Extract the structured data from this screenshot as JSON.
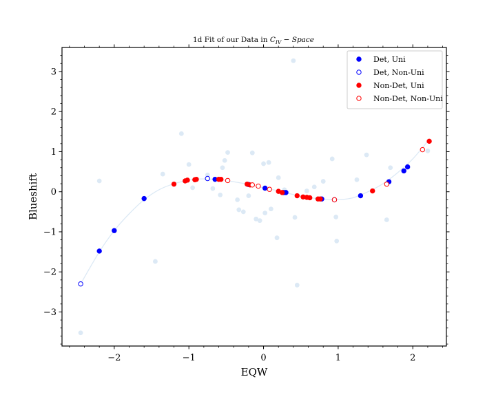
{
  "chart_data": {
    "type": "scatter",
    "title": "1d Fit of our Data in C_IV − Space",
    "title_parts": {
      "prefix": "1d Fit of our Data in ",
      "symbol": "C",
      "subscript": "IV",
      "suffix": " − Space"
    },
    "xlabel": "EQW",
    "ylabel": "Blueshift",
    "xlim": [
      -2.7,
      2.45
    ],
    "ylim": [
      -3.85,
      3.6
    ],
    "xticks": [
      -2,
      -1,
      0,
      1,
      2
    ],
    "xtick_labels": [
      "−2",
      "−1",
      "0",
      "1",
      "2"
    ],
    "yticks": [
      -3,
      -2,
      -1,
      0,
      1,
      2,
      3
    ],
    "ytick_labels": [
      "−3",
      "−2",
      "−1",
      "0",
      "1",
      "2",
      "3"
    ],
    "grid": false,
    "legend_position": "top-right",
    "colors": {
      "blue": "#0000ff",
      "red": "#ff0000",
      "background_points": "#dce9f5",
      "fit_line": "#dce9f5",
      "axes": "#000000"
    },
    "fit_curve": {
      "x": [
        -2.45,
        -2.2,
        -2.0,
        -1.8,
        -1.6,
        -1.4,
        -1.2,
        -1.0,
        -0.8,
        -0.6,
        -0.4,
        -0.2,
        0.0,
        0.2,
        0.4,
        0.6,
        0.8,
        1.0,
        1.2,
        1.4,
        1.6,
        1.8,
        2.0,
        2.2
      ],
      "y": [
        -2.3,
        -1.5,
        -0.97,
        -0.55,
        -0.2,
        0.05,
        0.2,
        0.29,
        0.32,
        0.3,
        0.25,
        0.18,
        0.1,
        0.02,
        -0.07,
        -0.14,
        -0.19,
        -0.2,
        -0.15,
        0.0,
        0.2,
        0.48,
        0.82,
        1.26
      ]
    },
    "background_points": {
      "x": [
        -2.45,
        -2.2,
        -1.45,
        -1.35,
        -1.1,
        -1.0,
        -0.95,
        -0.75,
        -0.68,
        -0.6,
        -0.58,
        -0.55,
        -0.52,
        -0.48,
        -0.35,
        -0.33,
        -0.27,
        -0.2,
        -0.15,
        -0.1,
        -0.05,
        0.0,
        0.02,
        0.07,
        0.1,
        0.18,
        0.2,
        0.28,
        0.4,
        0.42,
        0.45,
        0.58,
        0.68,
        0.8,
        0.92,
        0.97,
        0.98,
        1.25,
        1.38,
        1.65,
        1.7,
        2.2
      ],
      "y": [
        -3.52,
        0.27,
        -1.74,
        0.44,
        1.45,
        0.68,
        0.1,
        0.42,
        0.08,
        0.32,
        -0.08,
        0.6,
        0.78,
        0.98,
        -0.2,
        -0.45,
        -0.5,
        -0.1,
        0.97,
        -0.68,
        -0.72,
        0.7,
        -0.53,
        0.73,
        -0.43,
        -1.15,
        0.35,
        0.05,
        3.27,
        -0.64,
        -2.33,
        0.02,
        0.12,
        0.26,
        0.82,
        -0.63,
        -1.23,
        0.3,
        0.92,
        -0.7,
        0.6,
        1.02
      ]
    },
    "series": [
      {
        "name": "Det, Uni",
        "marker": "filled",
        "color": "#0000ff",
        "x": [
          -2.2,
          -2.0,
          -1.6,
          -0.65,
          -0.2,
          0.02,
          0.27,
          0.3,
          0.78,
          1.3,
          1.68,
          1.88,
          1.93
        ],
        "y": [
          -1.48,
          -0.97,
          -0.17,
          0.31,
          0.18,
          0.09,
          -0.02,
          -0.02,
          -0.18,
          -0.1,
          0.25,
          0.52,
          0.62
        ]
      },
      {
        "name": "Det, Non-Uni",
        "marker": "open",
        "color": "#0000ff",
        "x": [
          -2.45,
          -0.75,
          0.95
        ],
        "y": [
          -2.3,
          0.33,
          -0.2
        ]
      },
      {
        "name": "Non-Det, Uni",
        "marker": "filled",
        "color": "#ff0000",
        "x": [
          -1.2,
          -1.05,
          -1.02,
          -0.92,
          -0.9,
          -0.6,
          -0.57,
          -0.22,
          -0.18,
          0.2,
          0.25,
          0.45,
          0.53,
          0.58,
          0.62,
          0.73,
          0.76,
          1.46,
          2.22
        ],
        "y": [
          0.19,
          0.27,
          0.29,
          0.3,
          0.31,
          0.31,
          0.31,
          0.19,
          0.17,
          0.01,
          -0.02,
          -0.1,
          -0.13,
          -0.14,
          -0.15,
          -0.18,
          -0.18,
          0.02,
          1.26
        ]
      },
      {
        "name": "Non-Det, Non-Uni",
        "marker": "open",
        "color": "#ff0000",
        "x": [
          -0.48,
          -0.15,
          -0.07,
          0.08,
          0.95,
          1.65,
          2.13
        ],
        "y": [
          0.28,
          0.17,
          0.14,
          0.06,
          -0.2,
          0.19,
          1.05
        ]
      }
    ]
  }
}
